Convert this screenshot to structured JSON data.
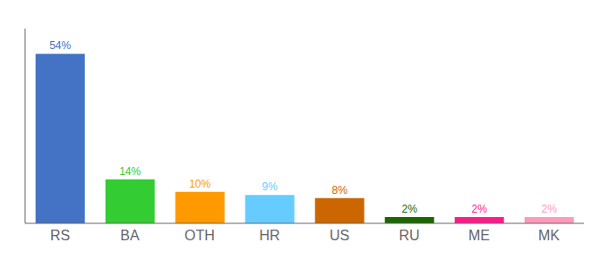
{
  "chart_data": {
    "type": "bar",
    "categories": [
      "RS",
      "BA",
      "OTH",
      "HR",
      "US",
      "RU",
      "ME",
      "MK"
    ],
    "values": [
      54,
      14,
      10,
      9,
      8,
      2,
      2,
      2
    ],
    "value_labels": [
      "54%",
      "14%",
      "10%",
      "9%",
      "8%",
      "2%",
      "2%",
      "2%"
    ],
    "colors": [
      "#4472c4",
      "#33cc33",
      "#ff9900",
      "#66ccff",
      "#cc6600",
      "#1a6600",
      "#ff1a8c",
      "#ff99bb"
    ],
    "ylim": [
      0,
      62
    ],
    "data_labels": true,
    "tick_labels": "x",
    "grid": false
  }
}
